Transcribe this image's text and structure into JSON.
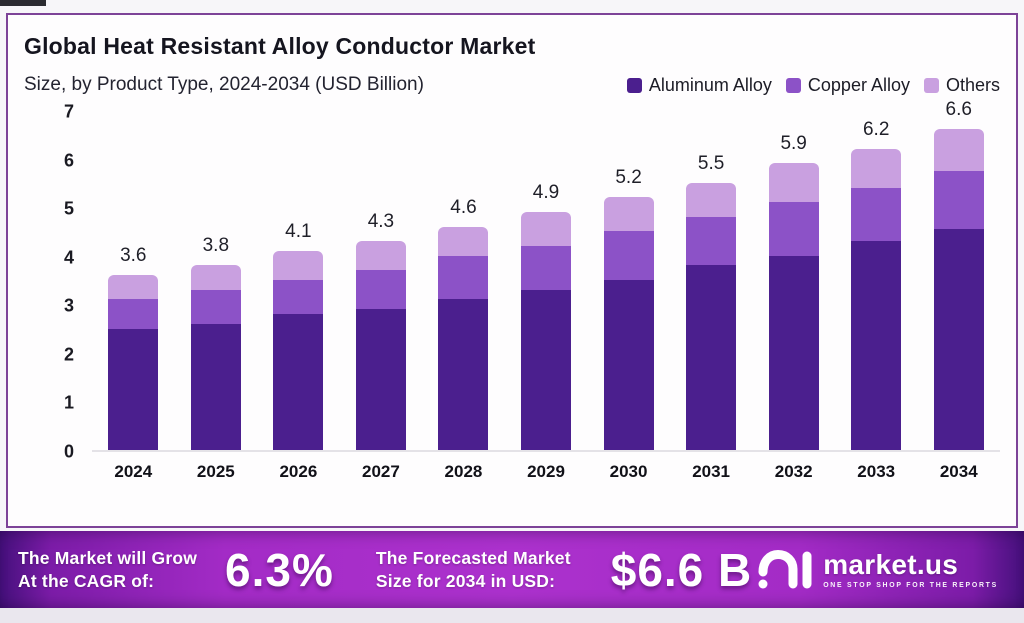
{
  "header": {
    "title": "Global Heat Resistant Alloy Conductor Market",
    "subtitle": "Size, by Product Type, 2024-2034 (USD Billion)"
  },
  "colors": {
    "aluminum": "#4b1f8e",
    "copper": "#8c52c7",
    "others": "#c9a0e0",
    "card_border": "#7d4398",
    "banner_purple": "#a32bc6"
  },
  "legend": [
    {
      "label": "Aluminum Alloy",
      "color": "#4b1f8e"
    },
    {
      "label": "Copper Alloy",
      "color": "#8c52c7"
    },
    {
      "label": "Others",
      "color": "#c9a0e0"
    }
  ],
  "chart_data": {
    "type": "bar",
    "stacked": true,
    "title": "Global Heat Resistant Alloy Conductor Market",
    "subtitle": "Size, by Product Type, 2024-2034 (USD Billion)",
    "xlabel": "",
    "ylabel": "USD Billion",
    "ylim": [
      0,
      7
    ],
    "yticks": [
      0,
      1,
      2,
      3,
      4,
      5,
      6,
      7
    ],
    "grid": false,
    "legend_position": "top-right",
    "categories": [
      "2024",
      "2025",
      "2026",
      "2027",
      "2028",
      "2029",
      "2030",
      "2031",
      "2032",
      "2033",
      "2034"
    ],
    "series": [
      {
        "name": "Aluminum Alloy",
        "color": "#4b1f8e",
        "values": [
          2.5,
          2.6,
          2.8,
          2.9,
          3.1,
          3.3,
          3.5,
          3.8,
          4.0,
          4.3,
          4.55
        ]
      },
      {
        "name": "Copper Alloy",
        "color": "#8c52c7",
        "values": [
          0.6,
          0.7,
          0.7,
          0.8,
          0.9,
          0.9,
          1.0,
          1.0,
          1.1,
          1.1,
          1.2
        ]
      },
      {
        "name": "Others",
        "color": "#c9a0e0",
        "values": [
          0.5,
          0.5,
          0.6,
          0.6,
          0.6,
          0.7,
          0.7,
          0.7,
          0.8,
          0.8,
          0.85
        ]
      }
    ],
    "totals": [
      "3.6",
      "3.8",
      "4.1",
      "4.3",
      "4.6",
      "4.9",
      "5.2",
      "5.5",
      "5.9",
      "6.2",
      "6.6"
    ]
  },
  "banner": {
    "cagr_line1": "The Market will Grow",
    "cagr_line2": "At the CAGR of:",
    "cagr_value": "6.3%",
    "forecast_line1": "The Forecasted Market",
    "forecast_line2": "Size for 2034 in USD:",
    "forecast_value": "$6.6 B",
    "brand_name": "market.us",
    "brand_tagline": "One Stop Shop For The Reports"
  }
}
